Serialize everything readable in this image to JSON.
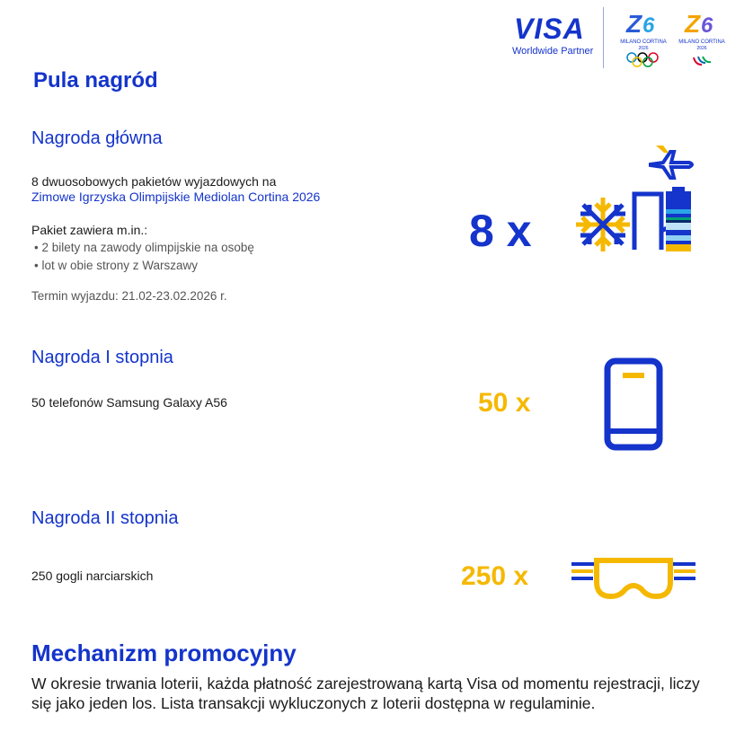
{
  "header": {
    "visa_logo": "VISA",
    "partner": "Worldwide Partner",
    "olympic_logo": "MILANO CORTINA 2026",
    "paralympic_logo": "MILANO CORTINA 2026"
  },
  "title": "Pula nagród",
  "main_prize": {
    "heading": "Nagroda główna",
    "line1": "8 dwuosobowych pakietów wyjazdowych na",
    "line2": "Zimowe Igrzyska Olimpijskie Mediolan Cortina 2026",
    "includes": "Pakiet zawiera m.in.:",
    "bullets": [
      "• 2 bilety na zawody olimpijskie na osobę",
      "• lot w obie strony z Warszawy"
    ],
    "date": "Termin wyjazdu: 21.02-23.02.2026 r.",
    "count": "8 x",
    "icon": "snowflake-plane-city-icon"
  },
  "first_prize": {
    "heading": "Nagroda I stopnia",
    "text": "50 telefonów Samsung Galaxy A56",
    "count": "50 x",
    "icon": "phone-icon"
  },
  "second_prize": {
    "heading": "Nagroda II stopnia",
    "text": "250 gogli narciarskich",
    "count": "250 x",
    "icon": "goggles-icon"
  },
  "mechanism": {
    "heading": "Mechanizm promocyjny",
    "text": "W okresie trwania loterii, każda płatność zarejestrowaną kartą Visa od momentu rejestracji, liczy się jako jeden los. Lista transakcji wykluczonych z loterii dostępna w regulaminie."
  },
  "colors": {
    "blue": "#1434cb",
    "yellow": "#f5b800"
  }
}
